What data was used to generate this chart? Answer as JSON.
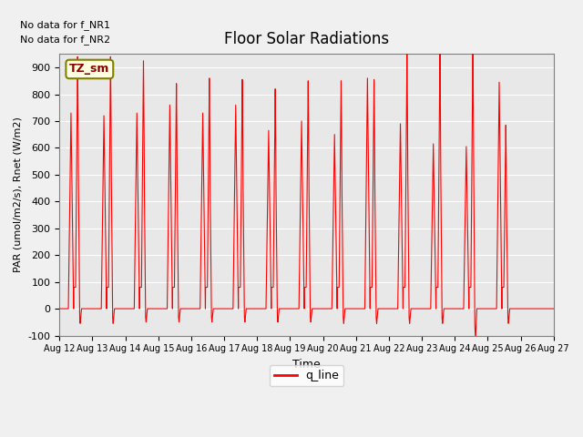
{
  "title": "Floor Solar Radiations",
  "xlabel": "Time",
  "ylabel": "PAR (umol/m2/s), Rnet (W/m2)",
  "ylim": [
    -100,
    950
  ],
  "background_color": "#e8e8e8",
  "fig_background": "#f0f0f0",
  "line_color": "red",
  "no_data_text1": "No data for f_NR1",
  "no_data_text2": "No data for f_NR2",
  "tz_label": "TZ_sm",
  "legend_label": "q_line",
  "yticks": [
    -100,
    0,
    100,
    200,
    300,
    400,
    500,
    600,
    700,
    800,
    900
  ],
  "n_days": 15,
  "day_start": 12,
  "spike_data": [
    {
      "day": 0.35,
      "peak1": 730,
      "peak2": 860,
      "neg": -55
    },
    {
      "day": 1.35,
      "peak1": 720,
      "peak2": 860,
      "neg": -55
    },
    {
      "day": 2.35,
      "peak1": 730,
      "peak2": 845,
      "neg": -50
    },
    {
      "day": 3.35,
      "peak1": 760,
      "peak2": 760,
      "neg": -50
    },
    {
      "day": 4.35,
      "peak1": 730,
      "peak2": 780,
      "neg": -50
    },
    {
      "day": 5.35,
      "peak1": 760,
      "peak2": 775,
      "neg": -50
    },
    {
      "day": 6.35,
      "peak1": 665,
      "peak2": 740,
      "neg": -50
    },
    {
      "day": 7.35,
      "peak1": 700,
      "peak2": 770,
      "neg": -50
    },
    {
      "day": 8.35,
      "peak1": 650,
      "peak2": 770,
      "neg": -55
    },
    {
      "day": 9.35,
      "peak1": 860,
      "peak2": 775,
      "neg": -55
    },
    {
      "day": 10.35,
      "peak1": 690,
      "peak2": 870,
      "neg": -55
    },
    {
      "day": 11.35,
      "peak1": 615,
      "peak2": 885,
      "neg": -55
    },
    {
      "day": 12.35,
      "peak1": 605,
      "peak2": 900,
      "neg": -120
    },
    {
      "day": 13.35,
      "peak1": 845,
      "peak2": 605,
      "neg": -55
    },
    {
      "day": 14.35,
      "peak1": 0,
      "peak2": 0,
      "neg": -55
    }
  ]
}
